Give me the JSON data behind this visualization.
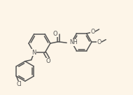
{
  "bg_color": "#fdf5e8",
  "lc": "#555555",
  "lw": 1.1,
  "fs": 5.2,
  "xlim": [
    0.2,
    9.8
  ],
  "ylim": [
    0.5,
    7.2
  ]
}
